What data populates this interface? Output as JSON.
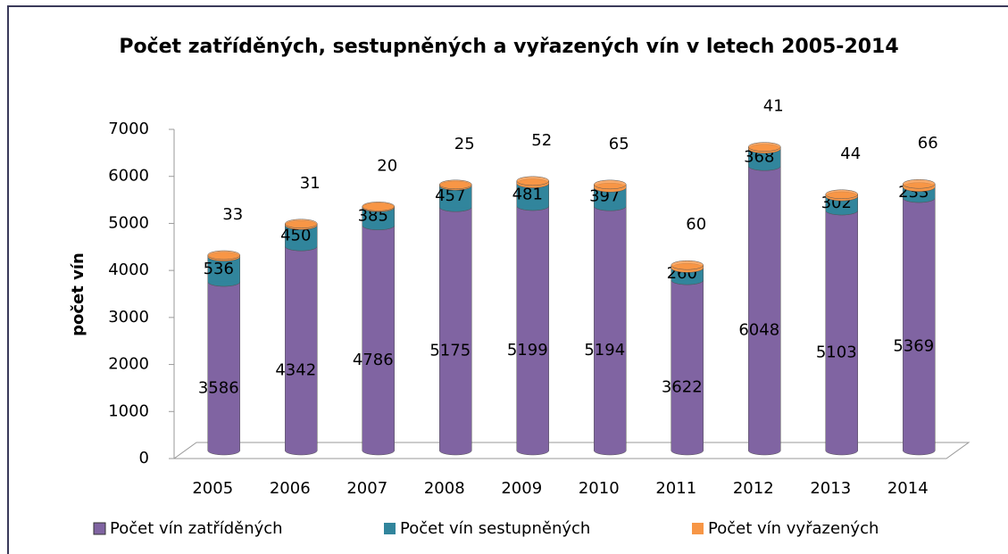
{
  "chart_data": {
    "type": "bar",
    "stacked": true,
    "title": "Počet zatříděných, sestupněných a vyřazených vín v letech 2005-2014",
    "y_label": "počet vín",
    "categories": [
      "2005",
      "2006",
      "2007",
      "2008",
      "2009",
      "2010",
      "2011",
      "2012",
      "2013",
      "2014"
    ],
    "series": [
      {
        "name": "Počet vín zatříděných",
        "color": "#8064a2",
        "values": [
          3586,
          4342,
          4786,
          5175,
          5199,
          5194,
          3622,
          6048,
          5103,
          5369
        ]
      },
      {
        "name": "Počet vín sestupněných",
        "color": "#31859c",
        "values": [
          536,
          450,
          385,
          457,
          481,
          397,
          260,
          368,
          302,
          233
        ]
      },
      {
        "name": "Počet vín vyřazených",
        "color": "#f79646",
        "values": [
          33,
          31,
          20,
          25,
          52,
          65,
          60,
          41,
          44,
          66
        ]
      }
    ],
    "ylim": [
      0,
      7000
    ],
    "yticks": [
      0,
      1000,
      2000,
      3000,
      4000,
      5000,
      6000,
      7000
    ],
    "legend": "bottom"
  }
}
